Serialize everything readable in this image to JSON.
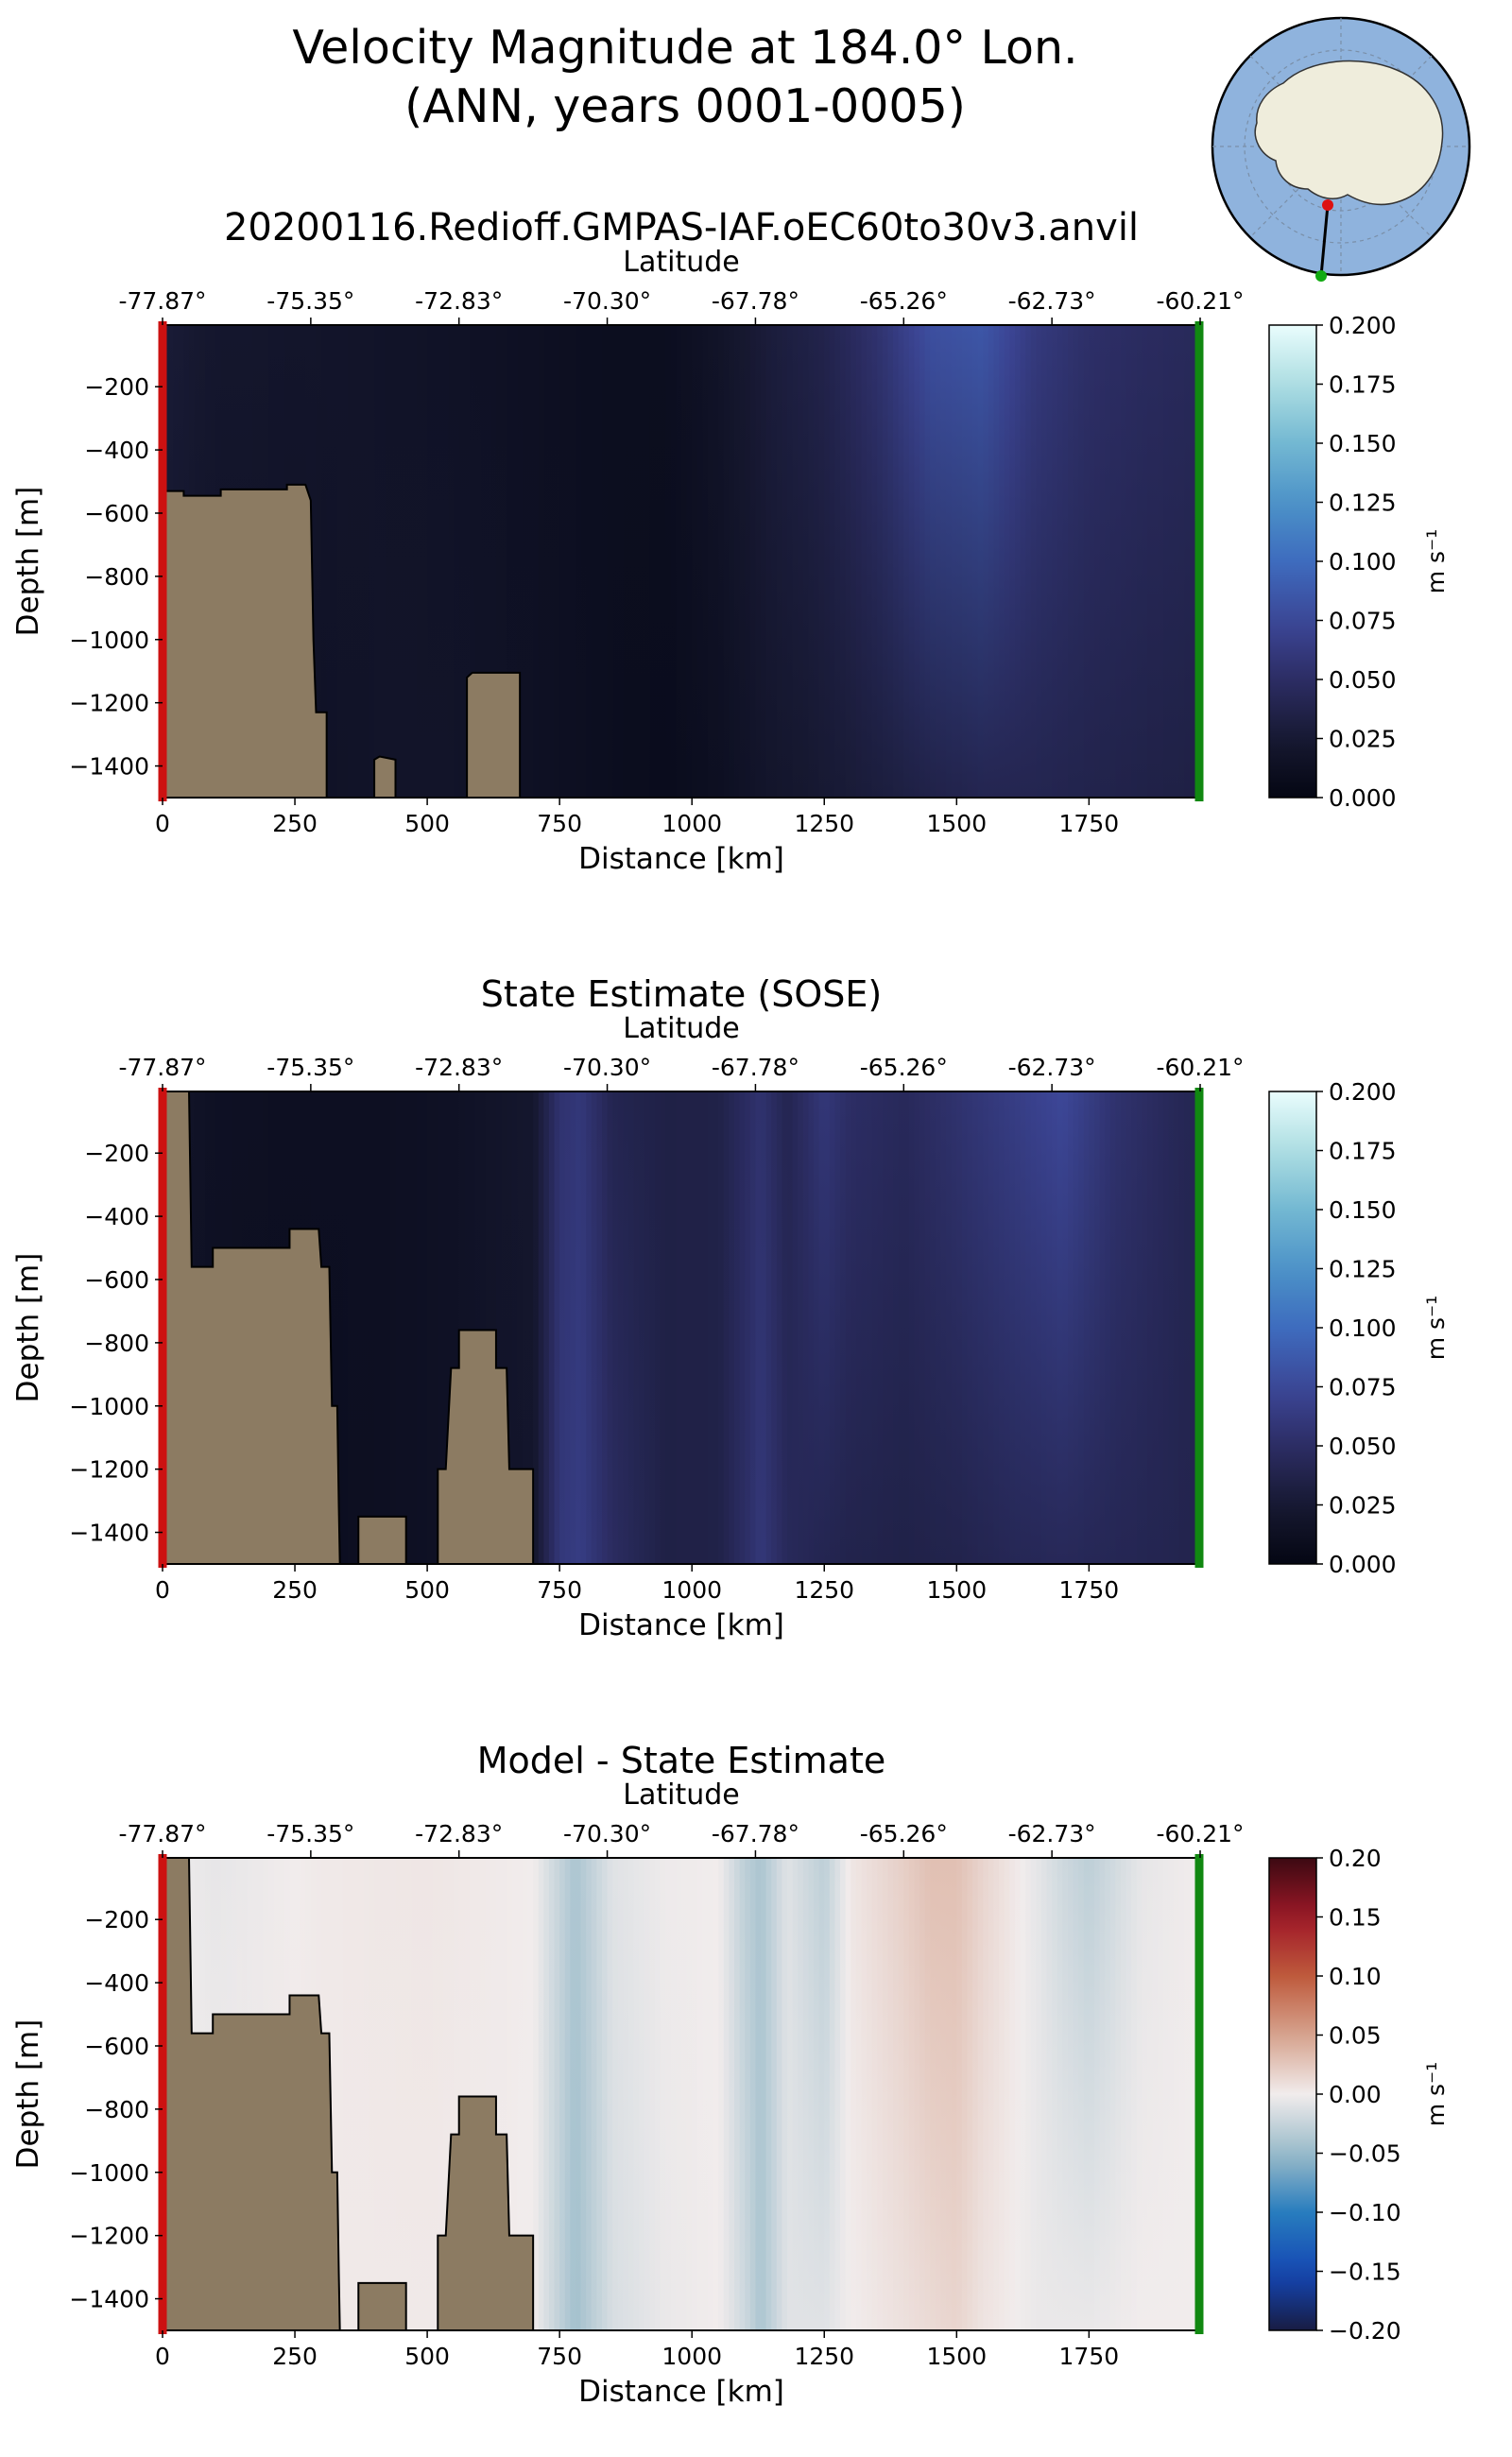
{
  "figure": {
    "title_line1": "Velocity Magnitude at 184.0° Lon.",
    "title_line2": "(ANN, years 0001-0005)"
  },
  "colors": {
    "land": "#8c7b62",
    "start_marker": "#cc1111",
    "end_marker": "#118811",
    "map_ocean": "#8fb3dd",
    "map_land": "#efeddc"
  },
  "chart_data": [
    {
      "type": "heatmap",
      "title": "20200116.Redioff.GMPAS-IAF.oEC60to30v3.anvil",
      "xlabel": "Distance [km]",
      "ylabel": "Depth [m]",
      "top_xlabel": "Latitude",
      "xlim": [
        0,
        1960
      ],
      "ylim": [
        -1500,
        -5
      ],
      "x_ticks": [
        "0",
        "250",
        "500",
        "750",
        "1000",
        "1250",
        "1500",
        "1750"
      ],
      "y_ticks": [
        "−200",
        "−400",
        "−600",
        "−800",
        "−1000",
        "−1200",
        "−1400"
      ],
      "lat_ticks": [
        "-77.87°",
        "-75.35°",
        "-72.83°",
        "-70.30°",
        "-67.78°",
        "-65.26°",
        "-62.73°",
        "-60.21°"
      ],
      "colormap": "ice",
      "colorbar": {
        "min": 0.0,
        "max": 0.2,
        "label": "m s⁻¹",
        "ticks": [
          "0.000",
          "0.025",
          "0.050",
          "0.075",
          "0.100",
          "0.125",
          "0.150",
          "0.175",
          "0.200"
        ]
      },
      "field_profile": {
        "distance_km": [
          0,
          100,
          250,
          400,
          550,
          700,
          850,
          950,
          1050,
          1150,
          1250,
          1350,
          1450,
          1550,
          1650,
          1750,
          1850,
          1960
        ],
        "surface_speed": [
          0.028,
          0.022,
          0.02,
          0.018,
          0.016,
          0.013,
          0.01,
          0.01,
          0.018,
          0.03,
          0.038,
          0.055,
          0.08,
          0.085,
          0.062,
          0.052,
          0.048,
          0.045
        ],
        "bottom_speed": [
          0.02,
          0.016,
          0.015,
          0.018,
          0.018,
          0.014,
          0.01,
          0.008,
          0.012,
          0.02,
          0.025,
          0.03,
          0.036,
          0.04,
          0.04,
          0.038,
          0.036,
          0.034
        ]
      },
      "bathymetry": [
        [
          0,
          -530
        ],
        [
          40,
          -530
        ],
        [
          40,
          -545
        ],
        [
          110,
          -545
        ],
        [
          110,
          -525
        ],
        [
          235,
          -525
        ],
        [
          235,
          -510
        ],
        [
          270,
          -510
        ],
        [
          280,
          -560
        ],
        [
          285,
          -1000
        ],
        [
          290,
          -1230
        ],
        [
          310,
          -1230
        ],
        [
          310,
          -1500
        ],
        [
          400,
          -1500
        ],
        [
          400,
          -1380
        ],
        [
          410,
          -1370
        ],
        [
          440,
          -1380
        ],
        [
          440,
          -1500
        ],
        [
          575,
          -1500
        ],
        [
          575,
          -1120
        ],
        [
          585,
          -1105
        ],
        [
          675,
          -1105
        ],
        [
          675,
          -1500
        ],
        [
          1960,
          -1500
        ]
      ]
    },
    {
      "type": "heatmap",
      "title": "State Estimate (SOSE)",
      "xlabel": "Distance [km]",
      "ylabel": "Depth [m]",
      "top_xlabel": "Latitude",
      "xlim": [
        0,
        1960
      ],
      "ylim": [
        -1500,
        -5
      ],
      "x_ticks": [
        "0",
        "250",
        "500",
        "750",
        "1000",
        "1250",
        "1500",
        "1750"
      ],
      "y_ticks": [
        "−200",
        "−400",
        "−600",
        "−800",
        "−1000",
        "−1200",
        "−1400"
      ],
      "lat_ticks": [
        "-77.87°",
        "-75.35°",
        "-72.83°",
        "-70.30°",
        "-67.78°",
        "-65.26°",
        "-62.73°",
        "-60.21°"
      ],
      "colormap": "ice",
      "colorbar": {
        "min": 0.0,
        "max": 0.2,
        "label": "m s⁻¹",
        "ticks": [
          "0.000",
          "0.025",
          "0.050",
          "0.075",
          "0.100",
          "0.125",
          "0.150",
          "0.175",
          "0.200"
        ]
      },
      "field_profile": {
        "distance_km": [
          0,
          100,
          250,
          400,
          550,
          700,
          750,
          790,
          850,
          950,
          1050,
          1100,
          1130,
          1180,
          1250,
          1300,
          1400,
          1500,
          1600,
          1700,
          1800,
          1900,
          1960
        ],
        "surface_speed": [
          0.02,
          0.014,
          0.012,
          0.012,
          0.015,
          0.022,
          0.055,
          0.06,
          0.04,
          0.035,
          0.036,
          0.048,
          0.055,
          0.04,
          0.06,
          0.05,
          0.045,
          0.055,
          0.065,
          0.075,
          0.055,
          0.045,
          0.04
        ],
        "bottom_speed": [
          0.016,
          0.012,
          0.01,
          0.012,
          0.015,
          0.02,
          0.06,
          0.065,
          0.048,
          0.035,
          0.036,
          0.05,
          0.06,
          0.045,
          0.04,
          0.038,
          0.036,
          0.038,
          0.042,
          0.044,
          0.042,
          0.04,
          0.038
        ]
      },
      "bathymetry": [
        [
          0,
          -5
        ],
        [
          50,
          -5
        ],
        [
          55,
          -560
        ],
        [
          95,
          -560
        ],
        [
          95,
          -500
        ],
        [
          240,
          -500
        ],
        [
          240,
          -440
        ],
        [
          295,
          -440
        ],
        [
          300,
          -560
        ],
        [
          315,
          -560
        ],
        [
          320,
          -1000
        ],
        [
          330,
          -1000
        ],
        [
          333,
          -1320
        ],
        [
          335,
          -1500
        ],
        [
          370,
          -1500
        ],
        [
          370,
          -1350
        ],
        [
          460,
          -1350
        ],
        [
          460,
          -1500
        ],
        [
          520,
          -1500
        ],
        [
          520,
          -1200
        ],
        [
          535,
          -1200
        ],
        [
          545,
          -880
        ],
        [
          560,
          -880
        ],
        [
          560,
          -760
        ],
        [
          630,
          -760
        ],
        [
          630,
          -880
        ],
        [
          650,
          -880
        ],
        [
          655,
          -1200
        ],
        [
          700,
          -1200
        ],
        [
          700,
          -1500
        ],
        [
          1960,
          -1500
        ]
      ]
    },
    {
      "type": "heatmap",
      "title": "Model - State Estimate",
      "xlabel": "Distance [km]",
      "ylabel": "Depth [m]",
      "top_xlabel": "Latitude",
      "xlim": [
        0,
        1960
      ],
      "ylim": [
        -1500,
        -5
      ],
      "x_ticks": [
        "0",
        "250",
        "500",
        "750",
        "1000",
        "1250",
        "1500",
        "1750"
      ],
      "y_ticks": [
        "−200",
        "−400",
        "−600",
        "−800",
        "−1000",
        "−1200",
        "−1400"
      ],
      "lat_ticks": [
        "-77.87°",
        "-75.35°",
        "-72.83°",
        "-70.30°",
        "-67.78°",
        "-65.26°",
        "-62.73°",
        "-60.21°"
      ],
      "colormap": "balance",
      "colorbar": {
        "min": -0.2,
        "max": 0.2,
        "label": "m s⁻¹",
        "ticks": [
          "−0.20",
          "−0.15",
          "−0.10",
          "−0.05",
          "0.00",
          "0.05",
          "0.10",
          "0.15",
          "0.20"
        ]
      },
      "field_profile": {
        "distance_km": [
          0,
          100,
          200,
          300,
          500,
          700,
          780,
          850,
          950,
          1050,
          1100,
          1130,
          1180,
          1250,
          1300,
          1400,
          1450,
          1500,
          1550,
          1650,
          1700,
          1750,
          1850,
          1960
        ],
        "surface_speed": [
          0.0,
          -0.006,
          -0.002,
          0.002,
          0.004,
          0.0,
          -0.04,
          -0.01,
          -0.002,
          0.0,
          -0.03,
          -0.04,
          -0.01,
          -0.03,
          0.004,
          0.02,
          0.03,
          0.03,
          0.016,
          -0.006,
          -0.02,
          -0.03,
          -0.006,
          0.0
        ],
        "bottom_speed": [
          0.0,
          0.0,
          0.002,
          0.002,
          0.002,
          0.0,
          -0.045,
          -0.015,
          -0.004,
          0.0,
          -0.02,
          -0.04,
          -0.01,
          -0.01,
          0.0,
          0.008,
          0.012,
          0.016,
          0.006,
          -0.004,
          -0.004,
          -0.004,
          0.0,
          0.0
        ]
      },
      "bathymetry": [
        [
          0,
          -5
        ],
        [
          50,
          -5
        ],
        [
          55,
          -560
        ],
        [
          95,
          -560
        ],
        [
          95,
          -500
        ],
        [
          240,
          -500
        ],
        [
          240,
          -440
        ],
        [
          295,
          -440
        ],
        [
          300,
          -560
        ],
        [
          315,
          -560
        ],
        [
          320,
          -1000
        ],
        [
          330,
          -1000
        ],
        [
          333,
          -1320
        ],
        [
          335,
          -1500
        ],
        [
          370,
          -1500
        ],
        [
          370,
          -1350
        ],
        [
          460,
          -1350
        ],
        [
          460,
          -1500
        ],
        [
          520,
          -1500
        ],
        [
          520,
          -1200
        ],
        [
          535,
          -1200
        ],
        [
          545,
          -880
        ],
        [
          560,
          -880
        ],
        [
          560,
          -760
        ],
        [
          630,
          -760
        ],
        [
          630,
          -880
        ],
        [
          650,
          -880
        ],
        [
          655,
          -1200
        ],
        [
          700,
          -1200
        ],
        [
          700,
          -1500
        ],
        [
          1960,
          -1500
        ]
      ]
    }
  ]
}
